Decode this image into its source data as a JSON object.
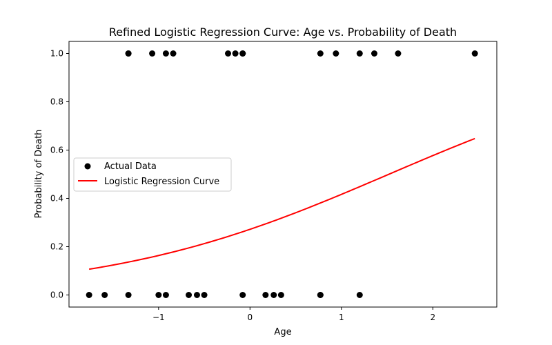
{
  "chart_data": {
    "type": "scatter",
    "title": "Refined Logistic Regression Curve: Age vs. Probability of Death",
    "xlabel": "Age",
    "ylabel": "Probability of Death",
    "xlim": [
      -1.98,
      2.7
    ],
    "ylim": [
      -0.05,
      1.05
    ],
    "x_ticks": [
      -1,
      0,
      1,
      2
    ],
    "x_tick_labels": [
      "−1",
      "0",
      "1",
      "2"
    ],
    "y_ticks": [
      0.0,
      0.2,
      0.4,
      0.6,
      0.8,
      1.0
    ],
    "y_tick_labels": [
      "0.0",
      "0.2",
      "0.4",
      "0.6",
      "0.8",
      "1.0"
    ],
    "grid": false,
    "legend_position": "center-left",
    "legend": [
      {
        "label": "Actual Data",
        "kind": "marker",
        "color": "#000000"
      },
      {
        "label": "Logistic Regression Curve",
        "kind": "line",
        "color": "#ff0000"
      }
    ],
    "series": [
      {
        "name": "Actual Data",
        "kind": "scatter",
        "color": "#000000",
        "points": [
          [
            -1.33,
            1
          ],
          [
            -1.33,
            1
          ],
          [
            -1.07,
            1
          ],
          [
            -0.92,
            1
          ],
          [
            -0.84,
            1
          ],
          [
            -0.24,
            1
          ],
          [
            -0.16,
            1
          ],
          [
            -0.08,
            1
          ],
          [
            -0.08,
            1
          ],
          [
            0.77,
            1
          ],
          [
            0.94,
            1
          ],
          [
            1.2,
            1
          ],
          [
            1.36,
            1
          ],
          [
            1.62,
            1
          ],
          [
            2.46,
            1
          ],
          [
            -1.76,
            0
          ],
          [
            -1.59,
            0
          ],
          [
            -1.33,
            0
          ],
          [
            -1.0,
            0
          ],
          [
            -0.92,
            0
          ],
          [
            -0.67,
            0
          ],
          [
            -0.58,
            0
          ],
          [
            -0.5,
            0
          ],
          [
            -0.08,
            0
          ],
          [
            0.17,
            0
          ],
          [
            0.26,
            0
          ],
          [
            0.34,
            0
          ],
          [
            0.77,
            0
          ],
          [
            0.77,
            0
          ],
          [
            1.2,
            0
          ]
        ]
      },
      {
        "name": "Logistic Regression Curve",
        "kind": "line",
        "color": "#ff0000",
        "intercept": -0.985,
        "coef": 0.648,
        "x_range": [
          -1.76,
          2.46
        ]
      }
    ]
  }
}
